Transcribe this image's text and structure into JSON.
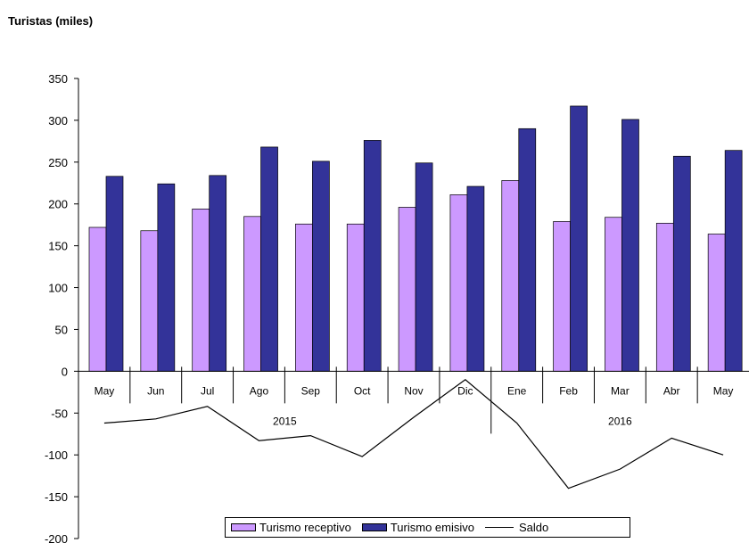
{
  "chart_data": {
    "type": "bar",
    "title": "Turistas (miles)",
    "categories": [
      "May",
      "Jun",
      "Jul",
      "Ago",
      "Sep",
      "Oct",
      "Nov",
      "Dic",
      "Ene",
      "Feb",
      "Mar",
      "Abr",
      "May"
    ],
    "years": [
      {
        "label": "2015"
      },
      {
        "label": "2016"
      }
    ],
    "ylim": [
      -200,
      350
    ],
    "yticks": [
      350,
      300,
      250,
      200,
      150,
      100,
      50,
      0,
      -50,
      -100,
      -150,
      -200
    ],
    "series": [
      {
        "name": "Turismo receptivo",
        "kind": "bar",
        "color": "#cc99ff",
        "values": [
          172,
          168,
          194,
          185,
          176,
          176,
          196,
          211,
          228,
          179,
          184,
          177,
          164
        ]
      },
      {
        "name": "Turismo emisivo",
        "kind": "bar",
        "color": "#333399",
        "values": [
          233,
          224,
          234,
          268,
          251,
          276,
          249,
          221,
          290,
          317,
          301,
          257,
          264
        ]
      },
      {
        "name": "Saldo",
        "kind": "line",
        "color": "#000000",
        "values": [
          -62,
          -57,
          -42,
          -83,
          -77,
          -102,
          -55,
          -10,
          -62,
          -140,
          -117,
          -80,
          -100
        ]
      }
    ],
    "legend_position": "bottom-center"
  }
}
